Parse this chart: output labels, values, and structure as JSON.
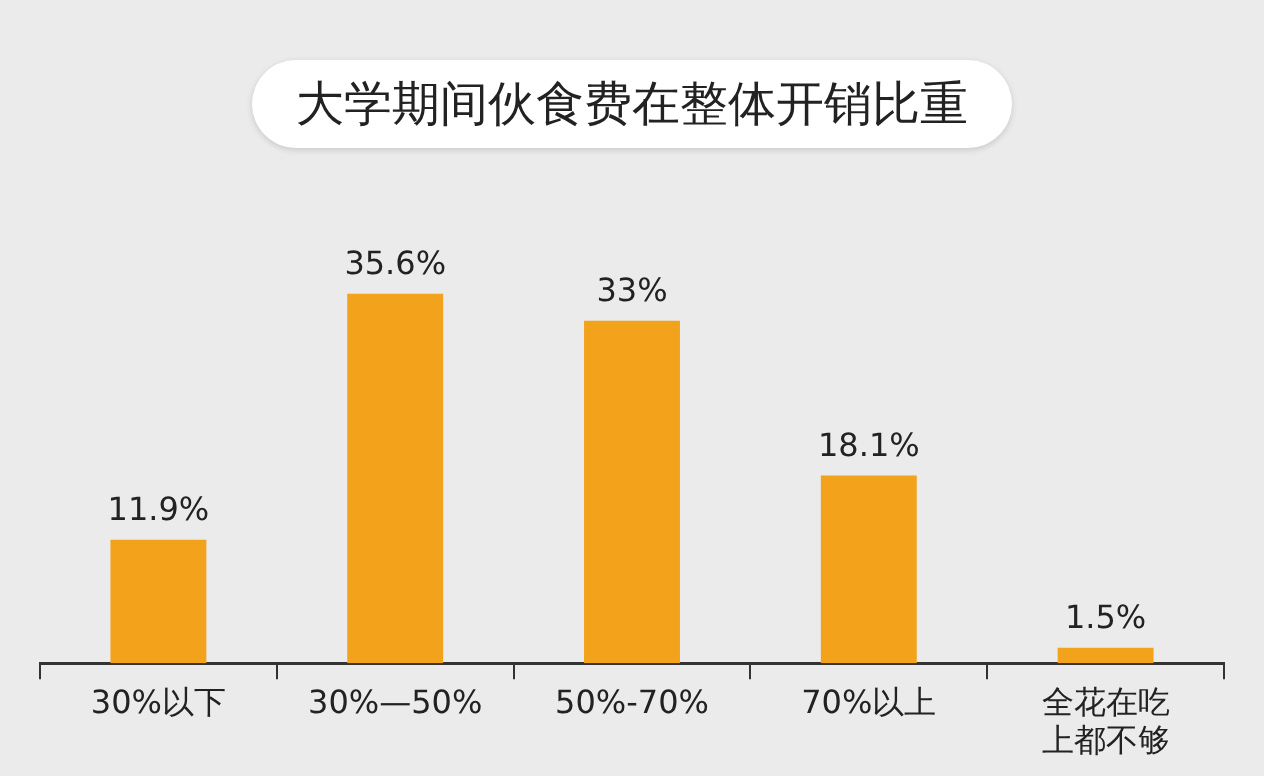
{
  "chart_data": {
    "type": "bar",
    "title": "大学期间伙食费在整体开销比重",
    "categories": [
      "30%以下",
      "30%—50%",
      "50%-70%",
      "70%以上",
      "全花在吃上都不够"
    ],
    "values": [
      11.9,
      35.6,
      33,
      18.1,
      1.5
    ],
    "value_labels": [
      "11.9%",
      "35.6%",
      "33%",
      "18.1%",
      "1.5%"
    ],
    "color": "#f2a21b",
    "grid": false,
    "legend": false
  }
}
